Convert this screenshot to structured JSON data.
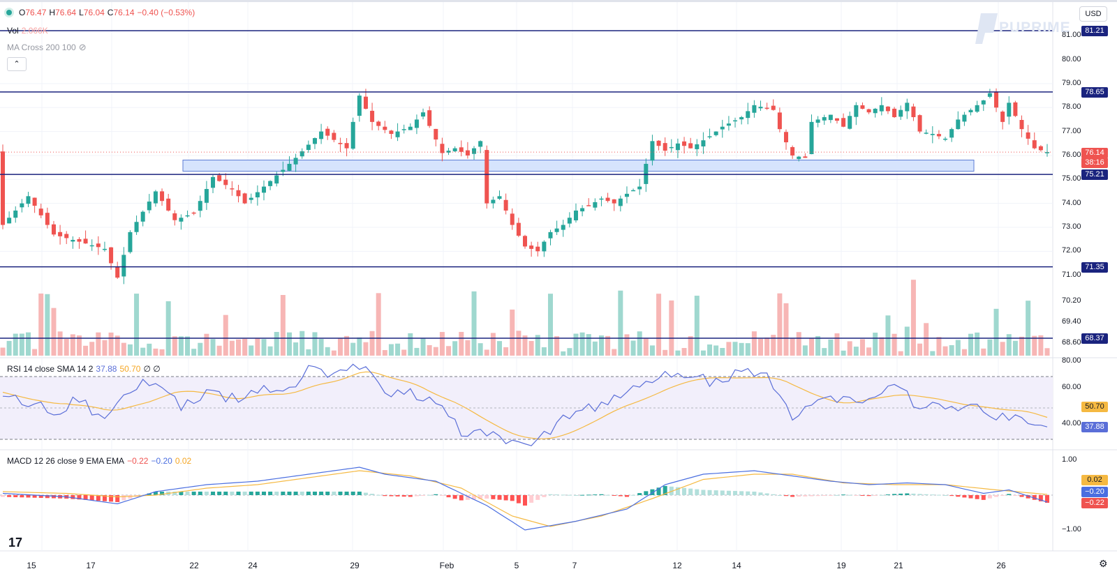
{
  "legend": {
    "ohlc": {
      "o_label": "O",
      "o": "76.47",
      "h_label": "H",
      "h": "76.64",
      "l_label": "L",
      "l": "76.04",
      "c_label": "C",
      "c": "76.14",
      "change": "−0.40 (−0.53%)"
    },
    "vol_label": "Vol",
    "vol_value": "2.066K",
    "ma_label": "MA Cross 200 100",
    "rsi_label": "RSI 14 close SMA 14 2",
    "rsi_value": "37.88",
    "rsi_sma": "50.70",
    "rsi_extra": "∅ ∅",
    "macd_label": "MACD 12 26 close 9 EMA EMA",
    "macd_hist": "−0.22",
    "macd_line": "−0.20",
    "macd_signal": "0.02"
  },
  "currency": "USD",
  "brand": "PUPRIME",
  "collapse_symbol": "⌃",
  "tv_logo": "17",
  "settings_icon": "⚙",
  "colors": {
    "up": "#26a69a",
    "down": "#ef5350",
    "level": "#1a237e",
    "zone": "#d6e4fd",
    "rsi": "#5a6ed8",
    "rsi_sma": "#f5b942",
    "macd_line": "#4a6ee0",
    "signal": "#f5b942"
  },
  "axes": {
    "price_ticks": [
      "81.00",
      "80.00",
      "79.00",
      "78.00",
      "77.00",
      "76.00",
      "75.00",
      "74.00",
      "73.00",
      "72.00",
      "71.00",
      "70.20",
      "69.40",
      "68.60"
    ],
    "rsi_ticks": [
      "80.00",
      "60.00",
      "40.00"
    ],
    "macd_ticks": [
      "1.00",
      "−1.00"
    ],
    "x_ticks": [
      "15",
      "17",
      "22",
      "24",
      "29",
      "Feb",
      "5",
      "7",
      "12",
      "14",
      "19",
      "21",
      "26"
    ]
  },
  "badges": {
    "levels": [
      "81.21",
      "78.65",
      "75.21",
      "71.35",
      "68.37"
    ],
    "last_price": "76.14",
    "countdown": "38:16",
    "rsi_value": "37.88",
    "rsi_sma": "50.70",
    "macd_signal": "0.02",
    "macd_line": "−0.20",
    "macd_hist": "−0.22"
  },
  "chart_data": {
    "type": "candlestick",
    "symbol_note": "hourly price candles with volume, RSI and MACD panes",
    "x_ticks": [
      "15",
      "17",
      "22",
      "24",
      "29",
      "Feb",
      "5",
      "7",
      "12",
      "14",
      "19",
      "21",
      "26"
    ],
    "price_range": [
      68.3,
      81.6
    ],
    "horizontal_levels": [
      81.21,
      78.65,
      75.21,
      71.35,
      68.37
    ],
    "support_zone": [
      75.3,
      75.75
    ],
    "last_price": 76.14,
    "ohlc_last": {
      "open": 76.47,
      "high": 76.64,
      "low": 76.04,
      "close": 76.14
    },
    "close_path": [
      [
        0,
        73.1
      ],
      [
        4,
        74.3
      ],
      [
        8,
        72.7
      ],
      [
        12,
        72.4
      ],
      [
        16,
        72.1
      ],
      [
        18,
        70.9
      ],
      [
        20,
        72.8
      ],
      [
        24,
        74.5
      ],
      [
        27,
        73.3
      ],
      [
        30,
        73.6
      ],
      [
        33,
        75.1
      ],
      [
        36,
        74.6
      ],
      [
        38,
        74.0
      ],
      [
        41,
        74.7
      ],
      [
        44,
        75.4
      ],
      [
        46,
        75.9
      ],
      [
        50,
        77.0
      ],
      [
        54,
        76.3
      ],
      [
        56,
        78.5
      ],
      [
        58,
        77.4
      ],
      [
        61,
        76.9
      ],
      [
        64,
        77.2
      ],
      [
        66,
        77.8
      ],
      [
        69,
        76.1
      ],
      [
        71,
        76.3
      ],
      [
        73,
        76.0
      ],
      [
        75,
        76.6
      ],
      [
        76,
        74.0
      ],
      [
        78,
        74.3
      ],
      [
        80,
        73.1
      ],
      [
        82,
        72.2
      ],
      [
        84,
        72.0
      ],
      [
        86,
        72.8
      ],
      [
        88,
        73.1
      ],
      [
        90,
        73.7
      ],
      [
        92,
        73.9
      ],
      [
        94,
        74.2
      ],
      [
        96,
        74.0
      ],
      [
        98,
        74.4
      ],
      [
        100,
        74.7
      ],
      [
        102,
        76.6
      ],
      [
        104,
        76.2
      ],
      [
        106,
        76.5
      ],
      [
        108,
        76.3
      ],
      [
        111,
        76.8
      ],
      [
        113,
        77.2
      ],
      [
        116,
        77.6
      ],
      [
        118,
        78.1
      ],
      [
        121,
        77.9
      ],
      [
        122,
        77.1
      ],
      [
        124,
        76.0
      ],
      [
        126,
        75.9
      ],
      [
        127,
        77.4
      ],
      [
        130,
        77.7
      ],
      [
        132,
        77.2
      ],
      [
        134,
        78.1
      ],
      [
        136,
        77.8
      ],
      [
        138,
        78.1
      ],
      [
        140,
        77.6
      ],
      [
        142,
        78.2
      ],
      [
        144,
        77.0
      ],
      [
        146,
        76.9
      ],
      [
        148,
        76.7
      ],
      [
        150,
        77.5
      ],
      [
        152,
        77.9
      ],
      [
        154,
        78.3
      ],
      [
        155,
        78.6
      ],
      [
        157,
        77.4
      ],
      [
        158,
        78.2
      ],
      [
        160,
        77.1
      ],
      [
        162,
        76.3
      ],
      [
        164,
        76.14
      ]
    ],
    "volume_note": "green/red volume bars per candle; tall spikes near Jan 25 and Jan 28",
    "rsi": {
      "length": 14,
      "last": 37.88,
      "sma": 50.7,
      "ylim": [
        20,
        80
      ],
      "upper_band": 70,
      "lower_band": 30,
      "values": [
        [
          0,
          60
        ],
        [
          4,
          52
        ],
        [
          8,
          48
        ],
        [
          12,
          55
        ],
        [
          16,
          40
        ],
        [
          20,
          62
        ],
        [
          24,
          68
        ],
        [
          28,
          52
        ],
        [
          32,
          58
        ],
        [
          36,
          56
        ],
        [
          40,
          62
        ],
        [
          44,
          58
        ],
        [
          48,
          74
        ],
        [
          52,
          70
        ],
        [
          56,
          78
        ],
        [
          60,
          58
        ],
        [
          64,
          60
        ],
        [
          68,
          52
        ],
        [
          72,
          36
        ],
        [
          76,
          32
        ],
        [
          80,
          28
        ],
        [
          84,
          30
        ],
        [
          88,
          44
        ],
        [
          92,
          50
        ],
        [
          96,
          56
        ],
        [
          100,
          62
        ],
        [
          104,
          72
        ],
        [
          108,
          70
        ],
        [
          112,
          66
        ],
        [
          116,
          72
        ],
        [
          120,
          70
        ],
        [
          124,
          46
        ],
        [
          128,
          54
        ],
        [
          132,
          58
        ],
        [
          136,
          56
        ],
        [
          140,
          62
        ],
        [
          144,
          52
        ],
        [
          148,
          48
        ],
        [
          152,
          54
        ],
        [
          156,
          44
        ],
        [
          160,
          46
        ],
        [
          164,
          37.88
        ]
      ]
    },
    "macd": {
      "fast": 12,
      "slow": 26,
      "signal": 9,
      "hist": -0.22,
      "line": -0.2,
      "signal_value": 0.02,
      "ylim": [
        -1.1,
        1.1
      ],
      "line_values": [
        [
          0,
          0.05
        ],
        [
          10,
          -0.05
        ],
        [
          18,
          -0.25
        ],
        [
          24,
          0.1
        ],
        [
          32,
          0.3
        ],
        [
          40,
          0.4
        ],
        [
          48,
          0.6
        ],
        [
          56,
          0.8
        ],
        [
          60,
          0.6
        ],
        [
          68,
          0.4
        ],
        [
          76,
          -0.3
        ],
        [
          82,
          -1.0
        ],
        [
          90,
          -0.75
        ],
        [
          98,
          -0.4
        ],
        [
          104,
          0.3
        ],
        [
          110,
          0.6
        ],
        [
          118,
          0.7
        ],
        [
          124,
          0.55
        ],
        [
          130,
          0.4
        ],
        [
          136,
          0.3
        ],
        [
          142,
          0.35
        ],
        [
          148,
          0.3
        ],
        [
          154,
          0.05
        ],
        [
          158,
          0.15
        ],
        [
          164,
          -0.2
        ]
      ],
      "signal_values": [
        [
          0,
          0.1
        ],
        [
          10,
          0.05
        ],
        [
          18,
          -0.05
        ],
        [
          24,
          0.0
        ],
        [
          32,
          0.2
        ],
        [
          40,
          0.3
        ],
        [
          48,
          0.5
        ],
        [
          56,
          0.7
        ],
        [
          64,
          0.55
        ],
        [
          72,
          0.2
        ],
        [
          80,
          -0.6
        ],
        [
          86,
          -0.9
        ],
        [
          94,
          -0.6
        ],
        [
          102,
          -0.1
        ],
        [
          110,
          0.45
        ],
        [
          118,
          0.6
        ],
        [
          124,
          0.6
        ],
        [
          132,
          0.35
        ],
        [
          140,
          0.3
        ],
        [
          148,
          0.3
        ],
        [
          156,
          0.15
        ],
        [
          164,
          0.02
        ]
      ]
    }
  }
}
